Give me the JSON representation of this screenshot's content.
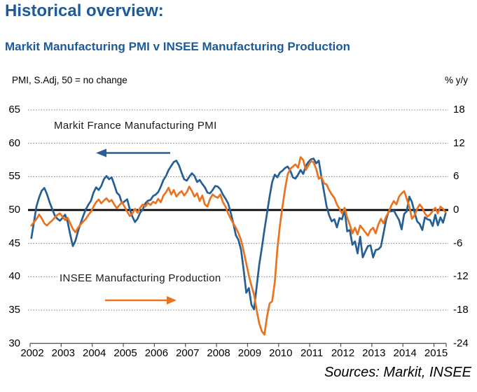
{
  "page": {
    "title": "Historical overview:",
    "subtitle": "Markit Manufacturing PMI v INSEE Manufacturing Production",
    "sources": "Sources: Markit, INSEE"
  },
  "chart_data": {
    "type": "line",
    "title": "Markit Manufacturing PMI v INSEE Manufacturing Production",
    "grid": "dotted horizontal gridlines, solid black zero line at PMI 50 / 0%",
    "legend_position": "in-plot text annotations with arrows",
    "left_axis": {
      "label": "PMI, S.Adj, 50 = no change",
      "ticks": [
        65,
        60,
        55,
        50,
        45,
        40,
        35,
        30
      ],
      "range": [
        30,
        65
      ],
      "baseline": 50
    },
    "right_axis": {
      "label": "% y/y",
      "ticks": [
        18,
        12,
        6,
        0,
        -6,
        -12,
        -18,
        -24
      ],
      "range": [
        -24,
        18
      ],
      "baseline": 0
    },
    "x_axis": {
      "tick_years": [
        2002,
        2003,
        2004,
        2005,
        2006,
        2007,
        2008,
        2009,
        2010,
        2011,
        2012,
        2013,
        2014,
        2015
      ],
      "range_decimal_years": [
        2002.0,
        2015.4
      ],
      "frequency": "monthly",
      "first_point": "2002-01",
      "last_point": "2015-05"
    },
    "annotations": [
      {
        "text": "Markit France Manufacturing PMI",
        "series": "pmi",
        "arrow_direction": "left"
      },
      {
        "text": "INSEE Manufacturing Production",
        "series": "insee",
        "arrow_direction": "right"
      }
    ],
    "series": [
      {
        "name": "Markit France Manufacturing PMI",
        "axis": "left",
        "color": "#265f93",
        "start_year": 2002,
        "monthly_values": [
          45.8,
          48.2,
          50.6,
          51.9,
          52.9,
          53.3,
          52.4,
          51.2,
          50.2,
          49.2,
          48.7,
          48.4,
          48.8,
          49.3,
          48.2,
          46.3,
          44.6,
          45.4,
          46.8,
          48.0,
          49.1,
          50.1,
          50.8,
          51.4,
          52.6,
          53.4,
          53.0,
          53.6,
          54.6,
          55.1,
          54.6,
          54.9,
          53.8,
          52.6,
          52.2,
          51.0,
          51.3,
          51.6,
          50.1,
          49.0,
          48.2,
          48.7,
          49.6,
          50.1,
          51.0,
          51.4,
          51.5,
          52.1,
          52.3,
          52.7,
          53.5,
          54.5,
          55.1,
          56.0,
          56.6,
          57.2,
          57.4,
          56.7,
          55.6,
          54.6,
          54.4,
          55.0,
          55.5,
          55.1,
          54.2,
          54.5,
          53.9,
          53.4,
          52.6,
          52.5,
          53.0,
          53.6,
          53.5,
          53.1,
          52.3,
          51.7,
          51.0,
          49.6,
          48.0,
          46.2,
          45.5,
          44.0,
          41.0,
          37.6,
          38.3,
          35.8,
          35.1,
          38.5,
          41.8,
          44.3,
          47.0,
          49.5,
          52.0,
          54.2,
          55.3,
          54.9,
          55.6,
          55.9,
          56.3,
          56.5,
          55.9,
          54.9,
          54.7,
          55.3,
          56.0,
          55.4,
          56.6,
          57.2,
          57.6,
          57.7,
          57.0,
          57.4,
          55.0,
          52.8,
          50.6,
          49.2,
          48.3,
          48.6,
          47.4,
          48.8,
          48.6,
          50.0,
          46.8,
          47.0,
          44.8,
          45.3,
          43.5,
          46.0,
          42.9,
          43.8,
          44.6,
          44.7,
          42.9,
          44.0,
          44.1,
          44.5,
          46.5,
          48.5,
          49.8,
          49.8,
          49.9,
          49.2,
          48.5,
          47.1,
          49.4,
          49.8,
          52.0,
          51.2,
          49.7,
          48.3,
          47.9,
          47.0,
          48.9,
          48.6,
          48.5,
          47.6,
          49.3,
          47.7,
          48.9,
          48.1,
          49.5
        ]
      },
      {
        "name": "INSEE Manufacturing Production",
        "axis": "right",
        "color": "#e9731e",
        "start_year": 2002,
        "monthly_values": [
          -2.8,
          -2.2,
          -1.6,
          -0.8,
          -1.5,
          -2.4,
          -2.8,
          -2.3,
          -1.9,
          -1.4,
          -0.9,
          -0.6,
          -1.2,
          -1.8,
          -1.4,
          -2.4,
          -3.4,
          -4.0,
          -3.2,
          -2.6,
          -2.1,
          -1.6,
          -0.9,
          -0.3,
          0.6,
          1.4,
          1.9,
          1.2,
          1.7,
          2.1,
          1.5,
          1.8,
          1.0,
          0.3,
          0.9,
          1.4,
          0.6,
          -0.3,
          -1.1,
          -0.6,
          0.2,
          -0.5,
          0.4,
          1.0,
          0.6,
          1.3,
          0.9,
          1.5,
          1.2,
          2.0,
          1.4,
          2.6,
          3.2,
          4.0,
          2.8,
          3.6,
          2.4,
          3.0,
          3.4,
          2.6,
          3.2,
          4.2,
          3.4,
          2.4,
          3.0,
          1.6,
          2.6,
          1.0,
          0.6,
          2.0,
          2.8,
          2.4,
          2.2,
          2.8,
          1.4,
          0.6,
          -0.6,
          -1.6,
          -2.4,
          -3.2,
          -4.2,
          -5.4,
          -7.4,
          -9.6,
          -11.8,
          -13.6,
          -15.2,
          -18.0,
          -20.4,
          -21.8,
          -22.4,
          -19.2,
          -16.8,
          -16.4,
          -13.0,
          -7.0,
          -2.8,
          0.6,
          3.8,
          6.4,
          7.4,
          7.8,
          8.2,
          7.6,
          9.5,
          9.0,
          7.2,
          8.0,
          8.8,
          8.6,
          7.4,
          5.6,
          6.0,
          4.8,
          4.6,
          3.6,
          2.8,
          2.2,
          1.0,
          0.2,
          -0.6,
          0.4,
          -1.4,
          -2.6,
          -4.2,
          -3.2,
          -4.4,
          -2.8,
          -3.4,
          -4.0,
          -4.6,
          -3.6,
          -3.2,
          -4.2,
          -2.6,
          -1.6,
          -2.4,
          -1.2,
          -0.4,
          0.8,
          1.6,
          1.0,
          2.4,
          3.0,
          3.4,
          2.0,
          0.6,
          -1.6,
          -1.0,
          0.2,
          1.0,
          0.4,
          -0.6,
          -1.2,
          -0.8,
          -0.2,
          0.4,
          -0.6,
          0.6,
          0.2,
          -0.4
        ]
      }
    ]
  }
}
